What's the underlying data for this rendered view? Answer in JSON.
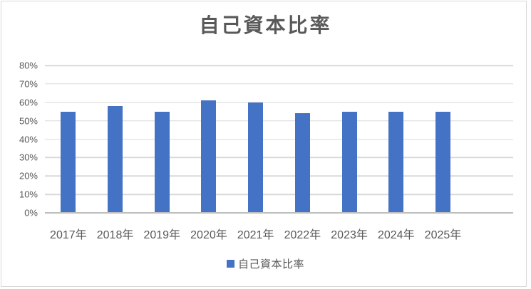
{
  "chart_data": {
    "type": "bar",
    "title": "自己資本比率",
    "categories": [
      "2017年",
      "2018年",
      "2019年",
      "2020年",
      "2021年",
      "2022年",
      "2023年",
      "2024年",
      "2025年"
    ],
    "values": [
      55,
      58,
      55,
      61,
      60,
      54,
      55,
      55,
      55
    ],
    "unit": "%",
    "xlabel": "",
    "ylabel": "",
    "ylim": [
      0,
      80
    ],
    "ytick_step": 10,
    "ytick_labels": [
      "80%",
      "70%",
      "60%",
      "50%",
      "40%",
      "30%",
      "20%",
      "10%",
      "0%"
    ],
    "grid": true,
    "extra_empty_category_slot": true,
    "legend": {
      "position": "bottom",
      "label": "自己資本比率"
    },
    "colors": {
      "bar": "#4472C4",
      "gridline": "#D9D9D9",
      "axis_line": "#BFBFBF",
      "text": "#595959",
      "border": "#D9D9D9",
      "background": "#FFFFFF"
    }
  }
}
